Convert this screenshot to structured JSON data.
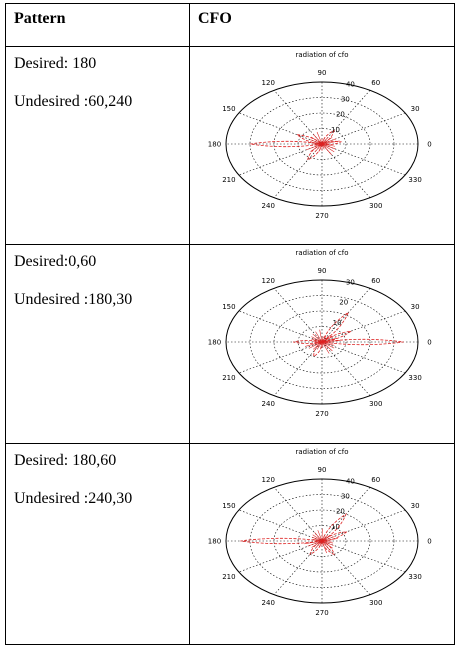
{
  "table": {
    "header": [
      "Pattern",
      "CFO"
    ],
    "rows": [
      {
        "pattern": [
          "Desired: 180",
          "Undesired :60,240"
        ],
        "plot": {
          "title": "radiation of cfo",
          "angle_labels": [
            "90",
            "60",
            "30",
            "0",
            "330",
            "300",
            "270",
            "240",
            "210",
            "180",
            "150",
            "120"
          ],
          "radius_labels": [
            "40",
            "30",
            "20",
            "10"
          ]
        }
      },
      {
        "pattern": [
          "Desired:0,60",
          "Undesired :180,30"
        ],
        "plot": {
          "title": "radiation of cfo",
          "angle_labels": [
            "90",
            "60",
            "30",
            "0",
            "330",
            "300",
            "270",
            "240",
            "210",
            "180",
            "150",
            "120"
          ],
          "radius_labels": [
            "30",
            "20",
            "10"
          ]
        }
      },
      {
        "pattern": [
          "Desired: 180,60",
          "Undesired :240,30"
        ],
        "plot": {
          "title": "radiation of cfo",
          "angle_labels": [
            "90",
            "60",
            "30",
            "0",
            "330",
            "300",
            "270",
            "240",
            "210",
            "180",
            "150",
            "120"
          ],
          "radius_labels": [
            "40",
            "30",
            "20",
            "10"
          ]
        }
      }
    ]
  }
}
